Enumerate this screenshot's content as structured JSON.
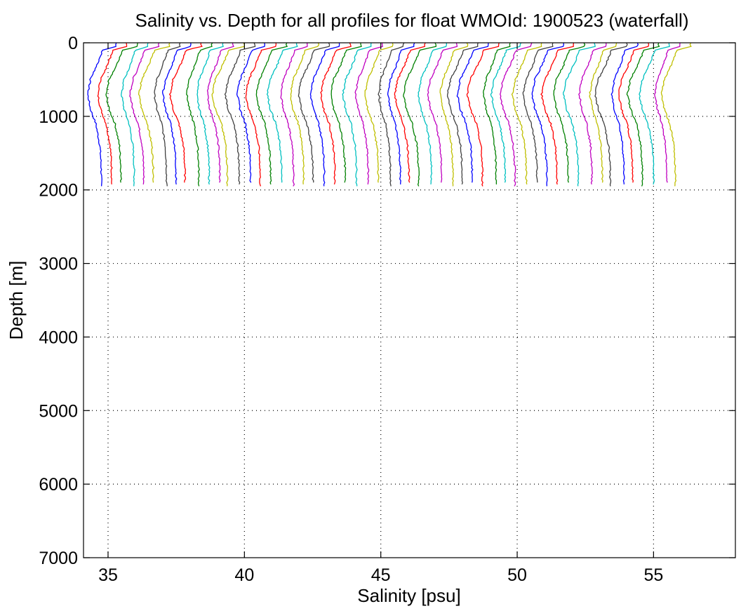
{
  "chart_data": {
    "type": "line",
    "title": "Salinity vs. Depth for all profiles for float WMOId: 1900523 (waterfall)",
    "xlabel": "Salinity [psu]",
    "ylabel": "Depth [m]",
    "xlim": [
      34.1,
      58.0
    ],
    "ylim": [
      0,
      7000
    ],
    "y_reversed": true,
    "grid": "dotted",
    "x_ticks": [
      35,
      40,
      45,
      50,
      55
    ],
    "y_ticks": [
      0,
      1000,
      2000,
      3000,
      4000,
      5000,
      6000,
      7000
    ],
    "waterfall": {
      "profile_count": 55,
      "first_surface_salinity": 35.3,
      "offset_per_profile_psu": 0.39,
      "max_depth_m": 1950,
      "description_of_shape_depth": [
        0,
        50,
        100,
        300,
        500,
        700,
        900,
        1100,
        1400,
        1700,
        1950
      ],
      "description_of_shape_anomaly": [
        0.0,
        0.0,
        -0.5,
        -0.7,
        -0.95,
        -1.05,
        -0.95,
        -0.75,
        -0.6,
        -0.55,
        -0.55
      ]
    },
    "series_colors": [
      "#0000ff",
      "#ff0000",
      "#008000",
      "#00c0c0",
      "#c000c0",
      "#bfbf00",
      "#404040"
    ]
  }
}
